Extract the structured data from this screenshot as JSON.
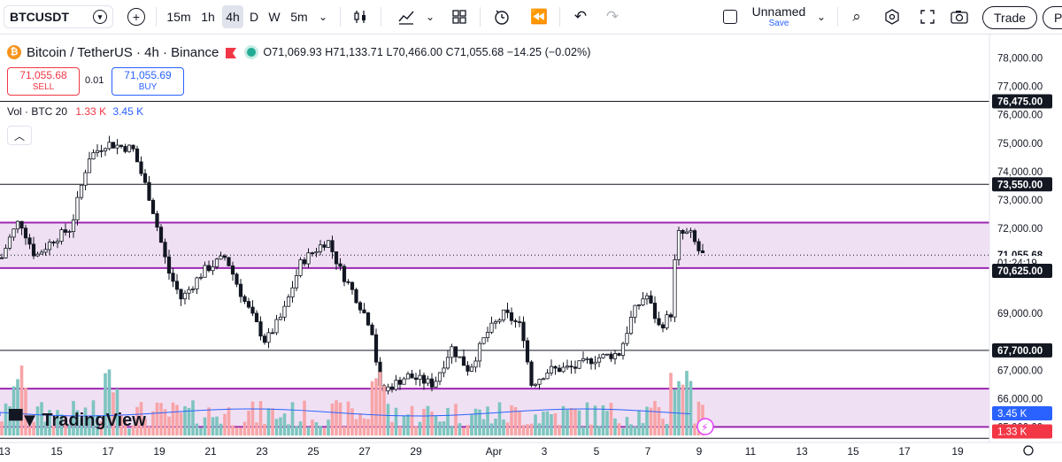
{
  "toolbar": {
    "symbol": "BTCUSDT",
    "intervals": [
      "15m",
      "1h",
      "4h",
      "D",
      "W",
      "5m"
    ],
    "active_interval": "4h",
    "layout_name": "Unnamed",
    "save_label": "Save",
    "trade_label": "Trade",
    "publish_label": "Pu"
  },
  "legend": {
    "title": "Bitcoin / TetherUS · 4h · Binance",
    "o_label": "O",
    "o": "71,069.93",
    "h_label": "H",
    "h": "71,133.71",
    "l_label": "L",
    "l": "70,466.00",
    "c_label": "C",
    "c": "71,055.68",
    "change": "−14.25 (−0.02%)"
  },
  "trade": {
    "sell_price": "71,055.68",
    "sell_label": "SELL",
    "spread": "0.01",
    "buy_price": "71,055.69",
    "buy_label": "BUY"
  },
  "volume_legend": {
    "label": "Vol · BTC 20",
    "v1": "1.33 K",
    "v2": "3.45 K"
  },
  "watermark": "TradingView",
  "colors": {
    "up": "#26a69a",
    "down": "#131722",
    "zone": "#9c27b0",
    "sell": "#f23645",
    "buy": "#2962ff",
    "vol_up": "#7dc4c0",
    "vol_down": "#f7a4a8"
  },
  "chart_data": {
    "type": "candlestick",
    "price_axis": {
      "labels": [
        "78,000.00",
        "77,000.00",
        "76,000.00",
        "75,000.00",
        "74,000.00",
        "73,000.00",
        "72,000.00",
        "69,000.00",
        "67,000.00",
        "66,000.00",
        "65,000.00"
      ]
    },
    "price_range": [
      64700,
      78300
    ],
    "horizontal_lines": [
      76475,
      73550,
      67700,
      64600
    ],
    "zones": [
      {
        "top": 72200,
        "bottom": 70600
      },
      {
        "top": 66350,
        "bottom": 65000
      }
    ],
    "badges": [
      {
        "text": "76,475.00",
        "price": 76475,
        "style": "line"
      },
      {
        "text": "73,550.00",
        "price": 73550,
        "style": "line"
      },
      {
        "text": "71,055.68",
        "price": 71055.68,
        "style": "last"
      },
      {
        "text": "01:24:19",
        "price": 70780,
        "style": "timer"
      },
      {
        "text": "70,625.00",
        "price": 70500,
        "style": "line"
      },
      {
        "text": "67,700.00",
        "price": 67700,
        "style": "line"
      },
      {
        "text": "3.45 K",
        "price": 65480,
        "style": "vol-blue"
      },
      {
        "text": "1.33 K",
        "price": 64840,
        "style": "vol-red"
      }
    ],
    "x_axis": [
      "13",
      "15",
      "17",
      "19",
      "21",
      "23",
      "25",
      "27",
      "29",
      "Apr",
      "3",
      "5",
      "7",
      "9",
      "11",
      "13",
      "15",
      "17",
      "19"
    ],
    "last_close": 71055.68
  }
}
